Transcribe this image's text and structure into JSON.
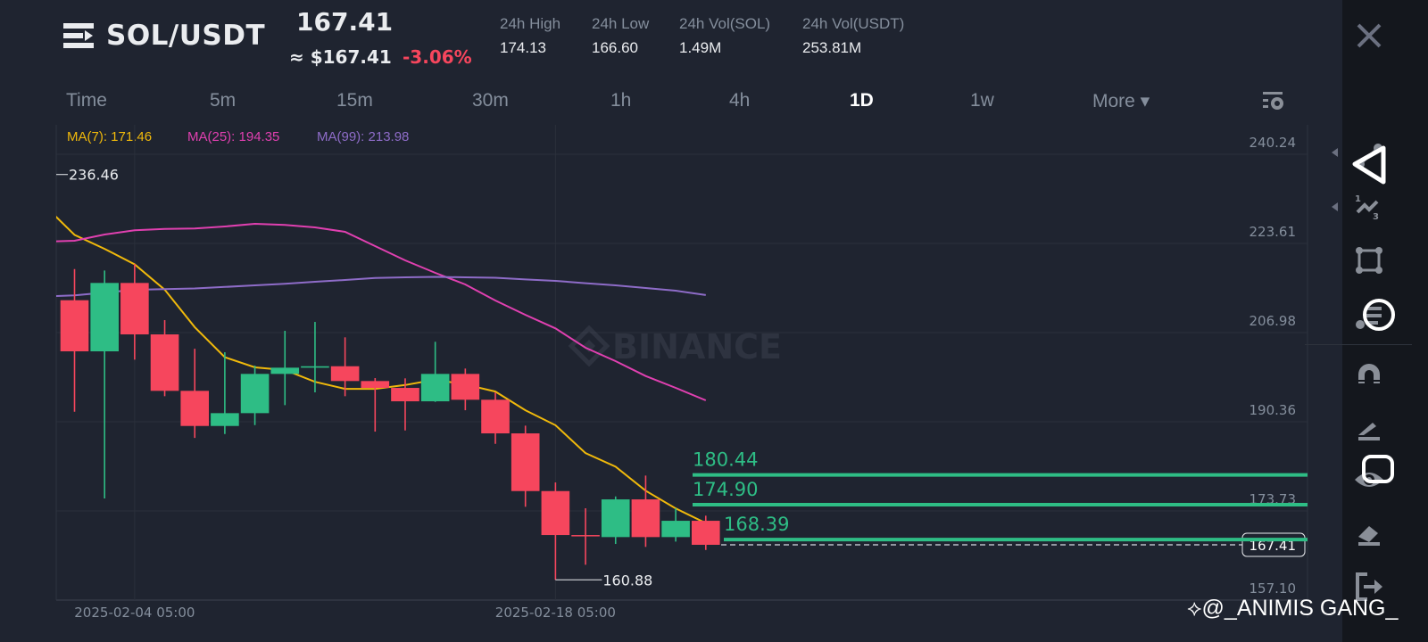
{
  "header": {
    "pair": "SOL/USDT",
    "last_price": "167.41",
    "usd_price": "≈ $167.41",
    "change_pct": "-3.06%",
    "stats": [
      {
        "label": "24h High",
        "value": "174.13"
      },
      {
        "label": "24h Low",
        "value": "166.60"
      },
      {
        "label": "24h Vol(SOL)",
        "value": "1.49M"
      },
      {
        "label": "24h Vol(USDT)",
        "value": "253.81M"
      }
    ]
  },
  "tabs": [
    {
      "label": "Time",
      "active": false
    },
    {
      "label": "5m",
      "active": false
    },
    {
      "label": "15m",
      "active": false
    },
    {
      "label": "30m",
      "active": false
    },
    {
      "label": "1h",
      "active": false
    },
    {
      "label": "4h",
      "active": false
    },
    {
      "label": "1D",
      "active": true
    },
    {
      "label": "1w",
      "active": false
    },
    {
      "label": "More ▾",
      "active": false
    }
  ],
  "ma_legend": {
    "ma7": "MA(7): 171.46",
    "ma25": "MA(25): 194.35",
    "ma99": "MA(99): 213.98"
  },
  "colors": {
    "up": "#2ebd85",
    "down": "#f6465d",
    "ma7": "#f0b90b",
    "ma25": "#e040b0",
    "ma99": "#8e6cc8",
    "background": "#1f2430"
  },
  "watermark_logo": "BINANCE",
  "overlay_watermark": "@_ANIMIS GANG_",
  "chart_data": {
    "type": "candlestick",
    "interval": "1D",
    "ylim": [
      157.1,
      240.24
    ],
    "y_ticks": [
      "240.24",
      "223.61",
      "206.98",
      "190.36",
      "173.73",
      "157.10"
    ],
    "x_ticks": [
      {
        "date": "2025-02-04",
        "label": "2025-02-04 05:00"
      },
      {
        "date": "2025-02-18",
        "label": "2025-02-18 05:00"
      }
    ],
    "grid": true,
    "candles_columns": [
      "date",
      "open",
      "high",
      "low",
      "close"
    ],
    "candles": [
      [
        "2025-02-02",
        213.02,
        218.84,
        192.23,
        203.49
      ],
      [
        "2025-02-03",
        203.49,
        218.57,
        176.05,
        216.24
      ],
      [
        "2025-02-04",
        216.24,
        219.78,
        201.94,
        206.65
      ],
      [
        "2025-02-05",
        206.65,
        209.31,
        195.12,
        196.12
      ],
      [
        "2025-02-06",
        196.12,
        203.98,
        187.35,
        189.57
      ],
      [
        "2025-02-07",
        189.57,
        203.32,
        188.07,
        191.96
      ],
      [
        "2025-02-08",
        191.96,
        200.83,
        189.73,
        199.28
      ],
      [
        "2025-02-09",
        199.28,
        207.31,
        193.46,
        200.44
      ],
      [
        "2025-02-10",
        200.44,
        208.97,
        195.84,
        200.71
      ],
      [
        "2025-02-11",
        200.71,
        206.1,
        195.12,
        197.95
      ],
      [
        "2025-02-12",
        197.95,
        198.5,
        188.52,
        196.67
      ],
      [
        "2025-02-13",
        196.67,
        198.45,
        188.74,
        194.17
      ],
      [
        "2025-02-14",
        194.17,
        205.27,
        194.06,
        199.28
      ],
      [
        "2025-02-15",
        199.28,
        200.28,
        192.51,
        194.46
      ],
      [
        "2025-02-16",
        194.46,
        195.84,
        186.24,
        188.19
      ],
      [
        "2025-02-17",
        188.19,
        189.63,
        174.5,
        177.43
      ],
      [
        "2025-02-18",
        177.43,
        179.04,
        160.88,
        169.23
      ],
      [
        "2025-02-19",
        169.23,
        174.22,
        163.69,
        169.1
      ],
      [
        "2025-02-20",
        168.85,
        176.43,
        167.57,
        175.88
      ],
      [
        "2025-02-21",
        175.88,
        180.32,
        167.02,
        168.85
      ],
      [
        "2025-02-22",
        168.85,
        174.22,
        168.01,
        171.89
      ],
      [
        "2025-02-23",
        171.89,
        172.84,
        166.45,
        167.41
      ]
    ],
    "ma_start_date": "2025-02-01",
    "series": [
      {
        "name": "MA(7)",
        "color": "#f0b90b",
        "values": [
          230.7,
          225.2,
          222.6,
          219.7,
          215.0,
          208.0,
          202.4,
          200.5,
          200.0,
          197.8,
          196.5,
          196.5,
          197.2,
          198.2,
          197.3,
          196.0,
          192.5,
          189.7,
          184.5,
          182.0,
          177.5,
          174.2,
          171.46
        ]
      },
      {
        "name": "MA(25)",
        "color": "#e040b0",
        "values": [
          223.95,
          224.11,
          225.27,
          226.05,
          226.32,
          226.39,
          226.77,
          227.27,
          227.05,
          226.6,
          225.77,
          223.11,
          220.45,
          218.12,
          215.96,
          212.97,
          210.3,
          207.76,
          204.15,
          201.66,
          198.88,
          196.67,
          194.35
        ]
      },
      {
        "name": "MA(99)",
        "color": "#8e6cc8",
        "values": [
          213.71,
          213.93,
          214.45,
          214.96,
          215.1,
          215.21,
          215.5,
          215.79,
          216.1,
          216.46,
          216.8,
          217.17,
          217.3,
          217.37,
          217.3,
          217.21,
          216.9,
          216.62,
          216.2,
          215.79,
          215.3,
          214.8,
          213.98
        ]
      }
    ],
    "annotations": {
      "visible_high": {
        "value": 236.46,
        "label": "236.46"
      },
      "visible_low": {
        "date": "2025-02-18",
        "value": 160.88,
        "label": "160.88"
      }
    },
    "horizontal_lines": [
      {
        "value": 180.44,
        "label": "180.44"
      },
      {
        "value": 174.9,
        "label": "174.90"
      },
      {
        "value": 168.39,
        "label": "168.39"
      }
    ],
    "current_price": {
      "value": 167.41,
      "label": "167.41"
    }
  },
  "toolbar": {
    "items": [
      "close-icon",
      "trend-line-icon",
      "fibonacci-icon",
      "rectangle-icon",
      "parallel-channel-icon",
      "magnet-icon",
      "brush-icon",
      "eye-icon",
      "eraser-icon",
      "exit-icon"
    ]
  }
}
